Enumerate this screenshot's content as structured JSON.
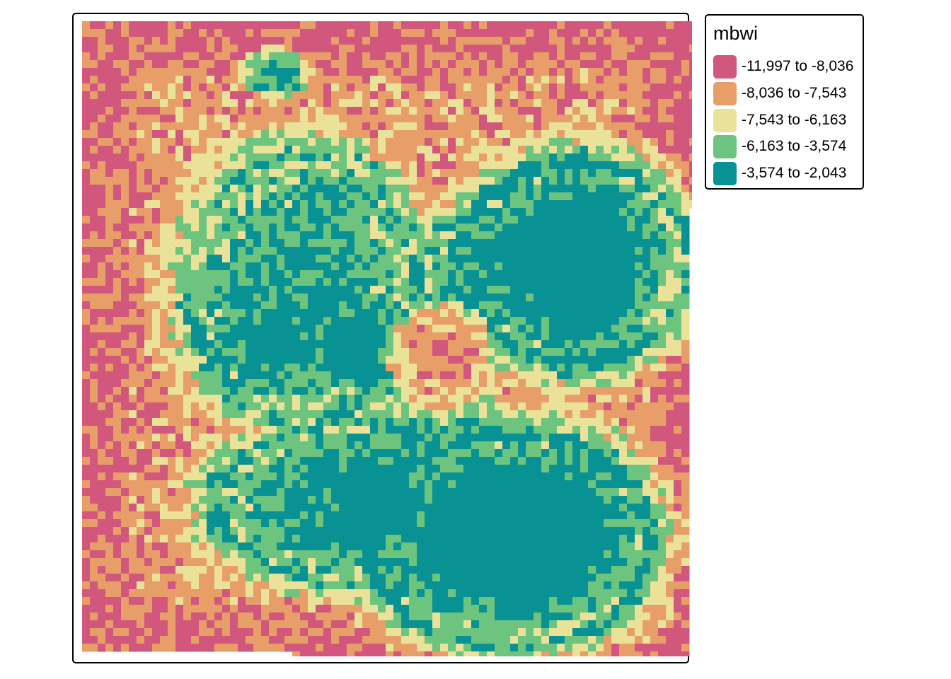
{
  "map": {
    "layer": "mbwi",
    "classes": [
      {
        "label": "-11,997 to -8,036",
        "color": "#d1577d"
      },
      {
        "label": "-8,036 to -7,543",
        "color": "#e89e69"
      },
      {
        "label": "-7,543 to -6,163",
        "color": "#ebe299"
      },
      {
        "label": "-6,163 to -3,574",
        "color": "#6cc47e"
      },
      {
        "label": "-3,574 to -2,043",
        "color": "#099294"
      }
    ]
  },
  "legend": {
    "title": "mbwi"
  }
}
